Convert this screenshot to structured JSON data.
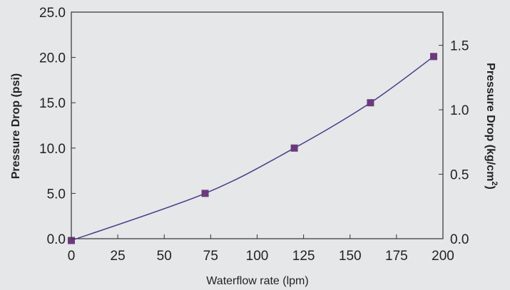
{
  "chart_data": {
    "type": "line",
    "xlabel": "Waterflow rate (lpm)",
    "ylabel": "Pressure Drop (psi)",
    "y2label_main": "Pressure Drop (kg/cm",
    "y2label_sup": "2",
    "y2label_close": ")",
    "xlim": [
      0,
      200
    ],
    "ylim": [
      0,
      25
    ],
    "y2lim": [
      0,
      1.7577
    ],
    "x_ticks": [
      "0",
      "25",
      "50",
      "75",
      "100",
      "125",
      "150",
      "175",
      "200"
    ],
    "x_tick_values": [
      0,
      25,
      50,
      75,
      100,
      125,
      150,
      175,
      200
    ],
    "y_ticks": [
      "0.0",
      "5.0",
      "10.0",
      "15.0",
      "20.0",
      "25.0"
    ],
    "y_tick_values": [
      0,
      5,
      10,
      15,
      20,
      25
    ],
    "y2_ticks": [
      "0.0",
      "0.5",
      "1.0",
      "1.5"
    ],
    "y2_tick_values": [
      0,
      0.5,
      1.0,
      1.5
    ],
    "grid": false,
    "series": [
      {
        "x": [
          0,
          72,
          120,
          161,
          195
        ],
        "y": [
          -0.2,
          5.0,
          10.0,
          15.0,
          20.1
        ],
        "color": "#6b3a7d",
        "line_color": "#4a3a8a",
        "marker": "square",
        "smooth": true
      }
    ]
  }
}
